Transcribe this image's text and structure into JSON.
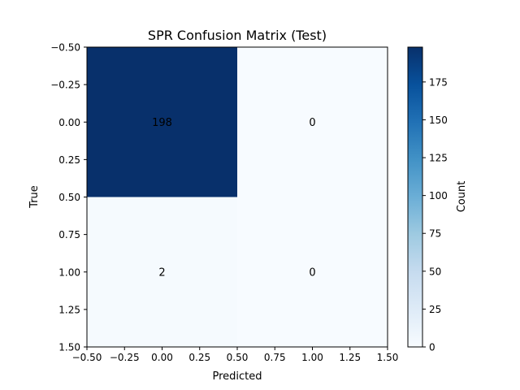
{
  "chart_data": {
    "type": "heatmap",
    "title": "SPR Confusion Matrix (Test)",
    "xlabel": "Predicted",
    "ylabel": "True",
    "matrix": [
      [
        198,
        0
      ],
      [
        2,
        0
      ]
    ],
    "cell_labels": [
      [
        "198",
        "0"
      ],
      [
        "2",
        "0"
      ]
    ],
    "xlim": [
      -0.5,
      1.5
    ],
    "ylim": [
      1.5,
      -0.5
    ],
    "x_ticks": [
      -0.5,
      -0.25,
      0.0,
      0.25,
      0.5,
      0.75,
      1.0,
      1.25,
      1.5
    ],
    "x_tick_labels": [
      "−0.50",
      "−0.25",
      "0.00",
      "0.25",
      "0.50",
      "0.75",
      "1.00",
      "1.25",
      "1.50"
    ],
    "y_ticks": [
      -0.5,
      -0.25,
      0.0,
      0.25,
      0.5,
      0.75,
      1.0,
      1.25,
      1.5
    ],
    "y_tick_labels": [
      "−0.50",
      "−0.25",
      "0.00",
      "0.25",
      "0.50",
      "0.75",
      "1.00",
      "1.25",
      "1.50"
    ],
    "grid": false,
    "colormap": "Blues",
    "colormap_colors": [
      "#f7fbff",
      "#deebf7",
      "#c6dbef",
      "#9ecae1",
      "#6baed6",
      "#4292c6",
      "#2171b5",
      "#08519c",
      "#08306b"
    ],
    "colorbar": {
      "label": "Count",
      "range": [
        0,
        198
      ],
      "ticks": [
        0,
        25,
        50,
        75,
        100,
        125,
        150,
        175
      ],
      "tick_labels": [
        "0",
        "25",
        "50",
        "75",
        "100",
        "125",
        "150",
        "175"
      ]
    }
  }
}
